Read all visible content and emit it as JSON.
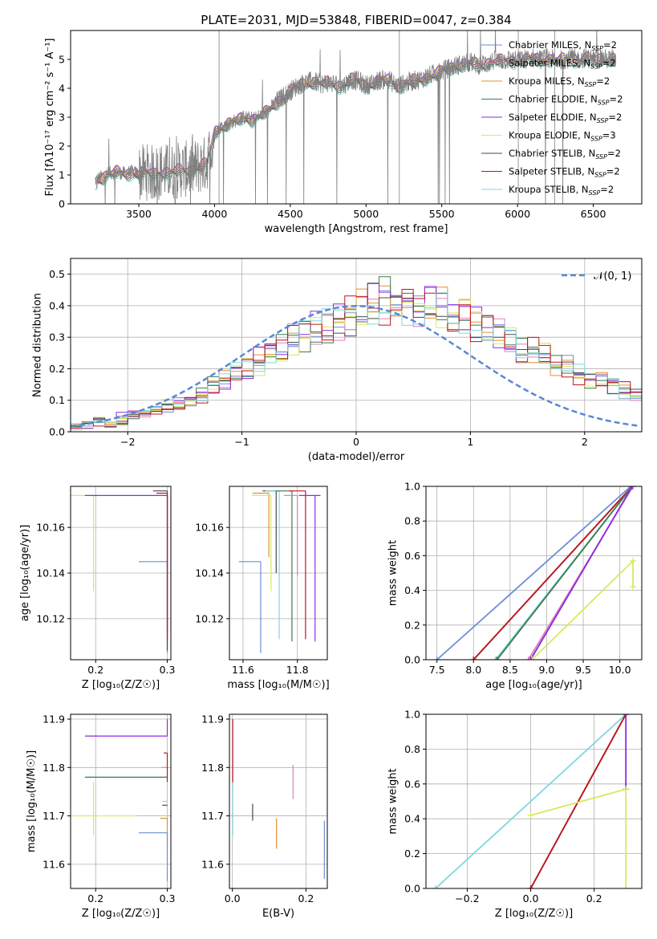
{
  "colors": {
    "Chabrier MILES": "#6e8ed8",
    "Salpeter MILES": "#e07fbe",
    "Kroupa MILES": "#e4902a",
    "Chabrier ELODIE": "#3d7a4a",
    "Salpeter ELODIE": "#8a2be2",
    "Kroupa ELODIE": "#d7ea5a",
    "Chabrier STELIB": "#4a4a4a",
    "Salpeter STELIB": "#c0141c",
    "Kroupa STELIB": "#7fd8e0",
    "data": "#808080",
    "normal": "#5b87d5"
  },
  "chart_data": [
    {
      "id": "spectrum",
      "type": "line",
      "title": "PLATE=2031, MJD=53848, FIBERID=0047, z=0.384",
      "xlabel": "wavelength [Angstrom, rest frame]",
      "ylabel": "Flux [fλ10⁻¹⁷ erg cm⁻² s⁻¹ A⁻¹]",
      "xlim": [
        3050,
        6820
      ],
      "ylim": [
        0,
        6
      ],
      "xticks": [
        3500,
        4000,
        4500,
        5000,
        5500,
        6000,
        6500
      ],
      "yticks": [
        0,
        1,
        2,
        3,
        4,
        5
      ],
      "grid": false,
      "legend_position": "right",
      "model_continuum": {
        "x": [
          3210,
          3260,
          3300,
          3350,
          3400,
          3450,
          3500,
          3550,
          3600,
          3650,
          3700,
          3750,
          3800,
          3850,
          3900,
          3950,
          4000,
          4050,
          4100,
          4150,
          4200,
          4250,
          4300,
          4350,
          4400,
          4450,
          4500,
          4550,
          4600,
          4650,
          4700,
          4750,
          4800,
          4850,
          4900,
          4950,
          5000,
          5050,
          5100,
          5150,
          5200,
          5250,
          5300,
          5350,
          5400,
          5450,
          5500,
          5550,
          5600,
          5650,
          5700,
          5750,
          5800,
          5850,
          5900,
          5950,
          6000,
          6050,
          6100,
          6150,
          6200,
          6250,
          6300,
          6350,
          6400,
          6450,
          6500,
          6550,
          6600,
          6650
        ],
        "y": [
          0.8,
          0.95,
          1.05,
          1.1,
          1.05,
          1.1,
          1.05,
          1.1,
          1.05,
          1.15,
          1.1,
          1.15,
          1.2,
          1.2,
          1.3,
          1.4,
          2.5,
          2.7,
          2.8,
          2.9,
          3.0,
          2.95,
          3.05,
          3.2,
          3.5,
          3.7,
          3.9,
          4.1,
          4.2,
          4.25,
          4.15,
          4.2,
          4.15,
          4.1,
          4.3,
          4.25,
          4.1,
          4.2,
          4.3,
          4.3,
          4.1,
          4.15,
          4.25,
          4.3,
          4.4,
          4.5,
          4.6,
          4.7,
          4.8,
          4.85,
          4.9,
          4.8,
          4.9,
          4.95,
          4.95,
          5.0,
          4.95,
          5.0,
          5.05,
          5.0,
          5.05,
          4.95,
          5.0,
          5.05,
          5.0,
          5.05,
          5.0,
          5.05,
          5.0,
          5.05
        ]
      },
      "series": [
        {
          "name": "Chabrier MILES",
          "nssp": "2",
          "offset": 0.0
        },
        {
          "name": "Salpeter MILES",
          "nssp": "2",
          "offset": 0.08
        },
        {
          "name": "Kroupa MILES",
          "nssp": "2",
          "offset": 0.03
        },
        {
          "name": "Chabrier ELODIE",
          "nssp": "2",
          "offset": -0.15
        },
        {
          "name": "Salpeter ELODIE",
          "nssp": "2",
          "offset": 0.1
        },
        {
          "name": "Kroupa ELODIE",
          "nssp": "3",
          "offset": 0.05
        },
        {
          "name": "Chabrier STELIB",
          "nssp": "2",
          "offset": -0.1
        },
        {
          "name": "Salpeter STELIB",
          "nssp": "2",
          "offset": -0.05
        },
        {
          "name": "Kroupa STELIB",
          "nssp": "2",
          "offset": -0.2
        }
      ]
    },
    {
      "id": "residuals",
      "type": "step",
      "xlabel": "(data-model)/error",
      "ylabel": "Normed distribution",
      "xlim": [
        -2.5,
        2.5
      ],
      "ylim": [
        0,
        0.55
      ],
      "xticks": [
        -2,
        -1,
        0,
        1,
        2
      ],
      "yticks": [
        0.0,
        0.1,
        0.2,
        0.3,
        0.4,
        0.5
      ],
      "grid": true,
      "legend_position": "upper right",
      "reference_curve": {
        "name": "𝒩(0, 1)",
        "mean": 0,
        "sigma": 1,
        "style": "dashed"
      },
      "bins": [
        -2.5,
        2.5,
        50
      ],
      "base_histogram": [
        0.01,
        0.02,
        0.03,
        0.03,
        0.04,
        0.05,
        0.06,
        0.07,
        0.08,
        0.09,
        0.1,
        0.12,
        0.14,
        0.16,
        0.18,
        0.2,
        0.22,
        0.24,
        0.26,
        0.28,
        0.3,
        0.32,
        0.33,
        0.34,
        0.36,
        0.38,
        0.4,
        0.41,
        0.4,
        0.39,
        0.38,
        0.37,
        0.35,
        0.34,
        0.33,
        0.31,
        0.29,
        0.27,
        0.25,
        0.23,
        0.22,
        0.2,
        0.18,
        0.17,
        0.15,
        0.14,
        0.13,
        0.11,
        0.1,
        0.08
      ]
    },
    {
      "id": "age_vs_Z",
      "type": "errorbar",
      "xlabel": "Z [log₁₀(Z/Z☉)]",
      "ylabel": "age  [log₁₀(age/yr)]",
      "xlim": [
        0.165,
        0.305
      ],
      "ylim": [
        10.102,
        10.178
      ],
      "xticks": [
        0.2,
        0.3
      ],
      "yticks": [
        10.12,
        10.14,
        10.16
      ],
      "grid": true,
      "points": [
        {
          "series": "Kroupa ELODIE",
          "x": 0.197,
          "y": 10.174,
          "xerr": [
            0.032,
            0.0
          ],
          "yerr": [
            0.042,
            0.0
          ]
        },
        {
          "series": "Salpeter ELODIE",
          "x": 0.3,
          "y": 10.174,
          "xerr": [
            0.115,
            0.0
          ],
          "yerr": [
            0.06,
            0.0
          ]
        },
        {
          "series": "Chabrier MILES",
          "x": 0.3,
          "y": 10.145,
          "xerr": [
            0.04,
            0.0
          ],
          "yerr": [
            0.04,
            0.0
          ]
        },
        {
          "series": "Chabrier STELIB",
          "x": 0.3,
          "y": 10.176,
          "xerr": [
            0.02,
            0.0
          ],
          "yerr": [
            0.07,
            0.0
          ]
        },
        {
          "series": "Salpeter STELIB",
          "x": 0.3,
          "y": 10.175,
          "xerr": [
            0.015,
            0.0
          ],
          "yerr": [
            0.065,
            0.0
          ]
        }
      ]
    },
    {
      "id": "age_vs_mass",
      "type": "errorbar",
      "xlabel": "mass [log₁₀(M/M☉)]",
      "ylabel": "",
      "xlim": [
        11.55,
        11.91
      ],
      "ylim": [
        10.102,
        10.178
      ],
      "xticks": [
        11.6,
        11.8
      ],
      "yticks": [
        10.12,
        10.14,
        10.16
      ],
      "grid": true,
      "points": [
        {
          "series": "Chabrier MILES",
          "x": 11.665,
          "y": 10.145,
          "xerr": [
            0.08,
            0.0
          ],
          "yerr": [
            0.04,
            0.0
          ]
        },
        {
          "series": "Kroupa MILES",
          "x": 11.695,
          "y": 10.175,
          "xerr": [
            0.06,
            0.0
          ],
          "yerr": [
            0.028,
            0.0
          ]
        },
        {
          "series": "Kroupa ELODIE",
          "x": 11.703,
          "y": 10.174,
          "xerr": [
            0.07,
            0.0
          ],
          "yerr": [
            0.042,
            0.0
          ]
        },
        {
          "series": "Chabrier STELIB",
          "x": 11.722,
          "y": 10.176,
          "xerr": [
            0.05,
            0.0
          ],
          "yerr": [
            0.036,
            0.0
          ]
        },
        {
          "series": "Kroupa STELIB",
          "x": 11.733,
          "y": 10.176,
          "xerr": [
            0.05,
            0.0
          ],
          "yerr": [
            0.065,
            0.0
          ]
        },
        {
          "series": "Chabrier ELODIE",
          "x": 11.78,
          "y": 10.176,
          "xerr": [
            0.06,
            0.0
          ],
          "yerr": [
            0.066,
            0.0
          ]
        },
        {
          "series": "Salpeter MILES",
          "x": 11.8,
          "y": 10.174,
          "xerr": [
            0.05,
            0.0
          ],
          "yerr": [
            0.035,
            0.0
          ]
        },
        {
          "series": "Salpeter STELIB",
          "x": 11.83,
          "y": 10.176,
          "xerr": [
            0.06,
            0.0
          ],
          "yerr": [
            0.065,
            0.0
          ]
        },
        {
          "series": "Salpeter ELODIE",
          "x": 11.865,
          "y": 10.174,
          "xerr": [
            0.06,
            0.02
          ],
          "yerr": [
            0.064,
            0.0
          ]
        }
      ]
    },
    {
      "id": "mass_weight_vs_age",
      "type": "line",
      "xlabel": "age  [log₁₀(age/yr)]",
      "ylabel": "mass weight",
      "xlim": [
        7.35,
        10.3
      ],
      "ylim": [
        0,
        1
      ],
      "xticks": [
        7.5,
        8.0,
        8.5,
        9.0,
        9.5,
        10.0
      ],
      "yticks": [
        0.0,
        0.2,
        0.4,
        0.6,
        0.8,
        1.0
      ],
      "grid": true,
      "series": [
        {
          "name": "Chabrier MILES",
          "x": [
            7.5,
            10.15
          ],
          "y": [
            0,
            1
          ]
        },
        {
          "name": "Chabrier STELIB",
          "x": [
            8.0,
            10.17
          ],
          "y": [
            0,
            1
          ]
        },
        {
          "name": "Salpeter STELIB",
          "x": [
            8.0,
            10.17
          ],
          "y": [
            0,
            1
          ]
        },
        {
          "name": "Kroupa STELIB",
          "x": [
            8.3,
            10.17
          ],
          "y": [
            0,
            1
          ]
        },
        {
          "name": "Chabrier ELODIE",
          "x": [
            8.32,
            10.17
          ],
          "y": [
            0,
            1
          ]
        },
        {
          "name": "Salpeter MILES",
          "x": [
            8.75,
            10.18
          ],
          "y": [
            0,
            1
          ]
        },
        {
          "name": "Salpeter ELODIE",
          "x": [
            8.78,
            10.17
          ],
          "y": [
            0,
            1
          ]
        },
        {
          "name": "Kroupa ELODIE",
          "x": [
            8.8,
            10.18,
            10.18
          ],
          "y": [
            0,
            0.57,
            0.42
          ]
        }
      ]
    },
    {
      "id": "mass_vs_Z",
      "type": "errorbar",
      "xlabel": "Z [log₁₀(Z/Z☉)]",
      "ylabel": "mass [log₁₀(M/M☉)]",
      "xlim": [
        0.165,
        0.305
      ],
      "ylim": [
        11.55,
        11.91
      ],
      "xticks": [
        0.2,
        0.3
      ],
      "yticks": [
        11.6,
        11.7,
        11.8,
        11.9
      ],
      "grid": true,
      "points": [
        {
          "series": "Salpeter ELODIE",
          "x": 0.3,
          "y": 11.865,
          "xerr": [
            0.115,
            0.0
          ],
          "yerr": [
            0.0,
            0.035
          ]
        },
        {
          "series": "Chabrier ELODIE",
          "x": 0.3,
          "y": 11.78,
          "xerr": [
            0.115,
            0.0
          ],
          "yerr": [
            0.0,
            0.0
          ]
        },
        {
          "series": "Kroupa ELODIE",
          "x": 0.197,
          "y": 11.7,
          "xerr": [
            0.032,
            0.06
          ],
          "yerr": [
            0.04,
            0.07
          ]
        },
        {
          "series": "Kroupa MILES",
          "x": 0.3,
          "y": 11.695,
          "xerr": [
            0.01,
            0.0
          ],
          "yerr": [
            0.05,
            0.0
          ]
        },
        {
          "series": "Chabrier MILES",
          "x": 0.3,
          "y": 11.665,
          "xerr": [
            0.04,
            0.0
          ],
          "yerr": [
            0.1,
            0.0
          ]
        },
        {
          "series": "Salpeter MILES",
          "x": 0.3,
          "y": 11.8,
          "xerr": [
            0.008,
            0.0
          ],
          "yerr": [
            0.0,
            0.0
          ]
        },
        {
          "series": "Salpeter STELIB",
          "x": 0.3,
          "y": 11.83,
          "xerr": [
            0.005,
            0.0
          ],
          "yerr": [
            0.06,
            0.0
          ]
        },
        {
          "series": "Kroupa STELIB",
          "x": 0.3,
          "y": 11.73,
          "xerr": [
            0.007,
            0.0
          ],
          "yerr": [
            0.0,
            0.0
          ]
        },
        {
          "series": "Chabrier STELIB",
          "x": 0.3,
          "y": 11.722,
          "xerr": [
            0.007,
            0.0
          ],
          "yerr": [
            0.0,
            0.0
          ]
        }
      ]
    },
    {
      "id": "mass_vs_ebv",
      "type": "errorbar",
      "xlabel": "E(B-V)",
      "ylabel": "",
      "xlim": [
        -0.008,
        0.258
      ],
      "ylim": [
        11.55,
        11.91
      ],
      "xticks": [
        0.0,
        0.2
      ],
      "yticks": [
        11.6,
        11.7,
        11.8,
        11.9
      ],
      "grid": true,
      "points": [
        {
          "series": "Salpeter STELIB",
          "x": 0.001,
          "y": 11.83,
          "xerr": [
            0,
            0
          ],
          "yerr": [
            0.065,
            0.07
          ]
        },
        {
          "series": "Kroupa STELIB",
          "x": 0.001,
          "y": 11.72,
          "xerr": [
            0,
            0
          ],
          "yerr": [
            0.06,
            0.05
          ]
        },
        {
          "series": "Chabrier STELIB",
          "x": 0.055,
          "y": 11.71,
          "xerr": [
            0,
            0
          ],
          "yerr": [
            0.02,
            0.015
          ]
        },
        {
          "series": "Kroupa MILES",
          "x": 0.12,
          "y": 11.665,
          "xerr": [
            0,
            0
          ],
          "yerr": [
            0.033,
            0.03
          ]
        },
        {
          "series": "Salpeter MILES",
          "x": 0.165,
          "y": 11.77,
          "xerr": [
            0,
            0
          ],
          "yerr": [
            0.035,
            0.035
          ]
        },
        {
          "series": "Chabrier MILES",
          "x": 0.25,
          "y": 11.63,
          "xerr": [
            0,
            0
          ],
          "yerr": [
            0.06,
            0.06
          ]
        }
      ]
    },
    {
      "id": "mass_weight_vs_Z",
      "type": "line",
      "xlabel": "Z [log₁₀(Z/Z☉)]",
      "ylabel": "mass weight",
      "xlim": [
        -0.33,
        0.35
      ],
      "ylim": [
        0,
        1
      ],
      "xticks": [
        -0.2,
        0.0,
        0.2
      ],
      "yticks": [
        0.0,
        0.2,
        0.4,
        0.6,
        0.8,
        1.0
      ],
      "grid": true,
      "series": [
        {
          "name": "Kroupa STELIB",
          "x": [
            -0.3,
            0.3
          ],
          "y": [
            0,
            1
          ]
        },
        {
          "name": "Chabrier STELIB",
          "x": [
            0.0,
            0.3
          ],
          "y": [
            0,
            1
          ]
        },
        {
          "name": "Salpeter STELIB",
          "x": [
            0.0,
            0.3
          ],
          "y": [
            0,
            1
          ]
        },
        {
          "name": "Salpeter ELODIE",
          "x": [
            0.3,
            0.3
          ],
          "y": [
            0.57,
            1.0
          ]
        },
        {
          "name": "Kroupa ELODIE",
          "x": [
            0.0,
            0.3,
            0.3
          ],
          "y": [
            0.42,
            0.57,
            0.0
          ]
        }
      ]
    }
  ]
}
